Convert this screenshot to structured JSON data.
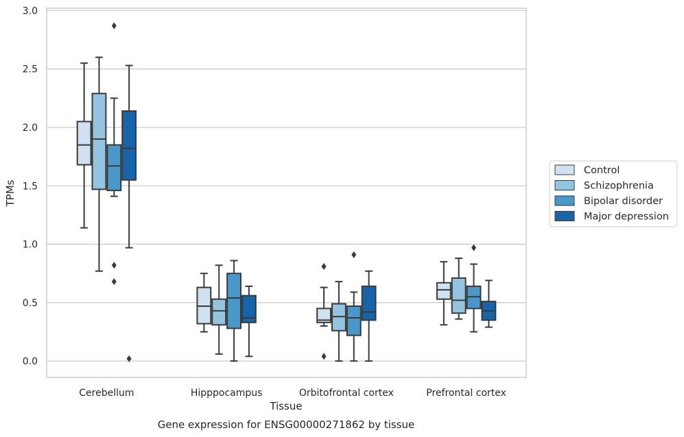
{
  "chart_data": {
    "type": "box",
    "title": "",
    "caption": "Gene expression for ENSG00000271862 by tissue",
    "xlabel": "Tissue",
    "ylabel": "TPMs",
    "ylim": [
      -0.14,
      3.02
    ],
    "yticks": [
      0.0,
      0.5,
      1.0,
      1.5,
      2.0,
      2.5,
      3.0
    ],
    "ytick_labels": [
      "0.0",
      "0.5",
      "1.0",
      "1.5",
      "2.0",
      "2.5",
      "3.0"
    ],
    "grid": "horizontal",
    "legend_position": "right",
    "categories": [
      "Cerebellum",
      "Hipppocampus",
      "Orbitofrontal cortex",
      "Prefrontal cortex"
    ],
    "series": [
      {
        "name": "Control",
        "color": "#d0e1f2",
        "boxes": [
          {
            "whisker_low": 1.14,
            "q1": 1.68,
            "median": 1.85,
            "q3": 2.05,
            "whisker_high": 2.55,
            "outliers": []
          },
          {
            "whisker_low": 0.25,
            "q1": 0.32,
            "median": 0.47,
            "q3": 0.63,
            "whisker_high": 0.75,
            "outliers": []
          },
          {
            "whisker_low": 0.3,
            "q1": 0.33,
            "median": 0.35,
            "q3": 0.45,
            "whisker_high": 0.63,
            "outliers": [
              0.81,
              0.04
            ]
          },
          {
            "whisker_low": 0.31,
            "q1": 0.53,
            "median": 0.61,
            "q3": 0.67,
            "whisker_high": 0.85,
            "outliers": []
          }
        ]
      },
      {
        "name": "Schizophrenia",
        "color": "#94c4df",
        "boxes": [
          {
            "whisker_low": 0.77,
            "q1": 1.47,
            "median": 1.9,
            "q3": 2.29,
            "whisker_high": 2.6,
            "outliers": []
          },
          {
            "whisker_low": 0.06,
            "q1": 0.31,
            "median": 0.43,
            "q3": 0.53,
            "whisker_high": 0.82,
            "outliers": []
          },
          {
            "whisker_low": 0.0,
            "q1": 0.26,
            "median": 0.38,
            "q3": 0.49,
            "whisker_high": 0.68,
            "outliers": []
          },
          {
            "whisker_low": 0.36,
            "q1": 0.41,
            "median": 0.52,
            "q3": 0.71,
            "whisker_high": 0.88,
            "outliers": []
          }
        ]
      },
      {
        "name": "Bipolar disorder",
        "color": "#4a98c9",
        "boxes": [
          {
            "whisker_low": 1.41,
            "q1": 1.46,
            "median": 1.67,
            "q3": 1.85,
            "whisker_high": 2.25,
            "outliers": [
              2.87,
              0.82,
              0.68
            ]
          },
          {
            "whisker_low": 0.0,
            "q1": 0.28,
            "median": 0.54,
            "q3": 0.75,
            "whisker_high": 0.86,
            "outliers": []
          },
          {
            "whisker_low": 0.0,
            "q1": 0.22,
            "median": 0.37,
            "q3": 0.47,
            "whisker_high": 0.59,
            "outliers": [
              0.91
            ]
          },
          {
            "whisker_low": 0.25,
            "q1": 0.45,
            "median": 0.55,
            "q3": 0.64,
            "whisker_high": 0.83,
            "outliers": [
              0.97
            ]
          }
        ]
      },
      {
        "name": "Major depression",
        "color": "#1764ab",
        "boxes": [
          {
            "whisker_low": 0.97,
            "q1": 1.55,
            "median": 1.82,
            "q3": 2.14,
            "whisker_high": 2.53,
            "outliers": [
              0.02
            ]
          },
          {
            "whisker_low": 0.04,
            "q1": 0.33,
            "median": 0.37,
            "q3": 0.56,
            "whisker_high": 0.64,
            "outliers": []
          },
          {
            "whisker_low": 0.0,
            "q1": 0.35,
            "median": 0.42,
            "q3": 0.64,
            "whisker_high": 0.77,
            "outliers": []
          },
          {
            "whisker_low": 0.29,
            "q1": 0.35,
            "median": 0.43,
            "q3": 0.51,
            "whisker_high": 0.69,
            "outliers": []
          }
        ]
      }
    ]
  }
}
